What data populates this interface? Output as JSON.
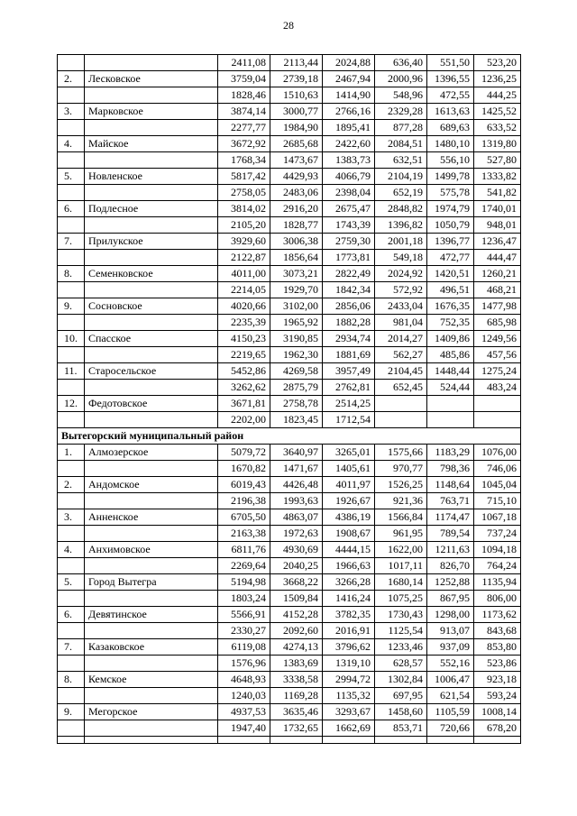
{
  "page": {
    "number": "28"
  },
  "table": {
    "section_label": "Вытегорский муниципальный район",
    "rows": [
      {
        "type": "data",
        "num": "",
        "name": "",
        "values": [
          "2411,08",
          "2113,44",
          "2024,88",
          "636,40",
          "551,50",
          "523,20"
        ]
      },
      {
        "type": "data",
        "num": "2.",
        "name": "Лесковское",
        "values": [
          "3759,04",
          "2739,18",
          "2467,94",
          "2000,96",
          "1396,55",
          "1236,25"
        ]
      },
      {
        "type": "data",
        "num": "",
        "name": "",
        "values": [
          "1828,46",
          "1510,63",
          "1414,90",
          "548,96",
          "472,55",
          "444,25"
        ]
      },
      {
        "type": "data",
        "num": "3.",
        "name": "Марковское",
        "values": [
          "3874,14",
          "3000,77",
          "2766,16",
          "2329,28",
          "1613,63",
          "1425,52"
        ]
      },
      {
        "type": "data",
        "num": "",
        "name": "",
        "values": [
          "2277,77",
          "1984,90",
          "1895,41",
          "877,28",
          "689,63",
          "633,52"
        ]
      },
      {
        "type": "data",
        "num": "4.",
        "name": "Майское",
        "values": [
          "3672,92",
          "2685,68",
          "2422,60",
          "2084,51",
          "1480,10",
          "1319,80"
        ]
      },
      {
        "type": "data",
        "num": "",
        "name": "",
        "values": [
          "1768,34",
          "1473,67",
          "1383,73",
          "632,51",
          "556,10",
          "527,80"
        ]
      },
      {
        "type": "data",
        "num": "5.",
        "name": "Новленское",
        "values": [
          "5817,42",
          "4429,93",
          "4066,79",
          "2104,19",
          "1499,78",
          "1333,82"
        ]
      },
      {
        "type": "data",
        "num": "",
        "name": "",
        "values": [
          "2758,05",
          "2483,06",
          "2398,04",
          "652,19",
          "575,78",
          "541,82"
        ]
      },
      {
        "type": "data",
        "num": "6.",
        "name": "Подлесное",
        "values": [
          "3814,02",
          "2916,20",
          "2675,47",
          "2848,82",
          "1974,79",
          "1740,01"
        ]
      },
      {
        "type": "data",
        "num": "",
        "name": "",
        "values": [
          "2105,20",
          "1828,77",
          "1743,39",
          "1396,82",
          "1050,79",
          "948,01"
        ]
      },
      {
        "type": "data",
        "num": "7.",
        "name": "Прилукское",
        "values": [
          "3929,60",
          "3006,38",
          "2759,30",
          "2001,18",
          "1396,77",
          "1236,47"
        ]
      },
      {
        "type": "data",
        "num": "",
        "name": "",
        "values": [
          "2122,87",
          "1856,64",
          "1773,81",
          "549,18",
          "472,77",
          "444,47"
        ]
      },
      {
        "type": "data",
        "num": "8.",
        "name": "Семенковское",
        "values": [
          "4011,00",
          "3073,21",
          "2822,49",
          "2024,92",
          "1420,51",
          "1260,21"
        ]
      },
      {
        "type": "data",
        "num": "",
        "name": "",
        "values": [
          "2214,05",
          "1929,70",
          "1842,34",
          "572,92",
          "496,51",
          "468,21"
        ]
      },
      {
        "type": "data",
        "num": "9.",
        "name": "Сосновское",
        "values": [
          "4020,66",
          "3102,00",
          "2856,06",
          "2433,04",
          "1676,35",
          "1477,98"
        ]
      },
      {
        "type": "data",
        "num": "",
        "name": "",
        "values": [
          "2235,39",
          "1965,92",
          "1882,28",
          "981,04",
          "752,35",
          "685,98"
        ]
      },
      {
        "type": "data",
        "num": "10.",
        "name": "Спасское",
        "values": [
          "4150,23",
          "3190,85",
          "2934,74",
          "2014,27",
          "1409,86",
          "1249,56"
        ]
      },
      {
        "type": "data",
        "num": "",
        "name": "",
        "values": [
          "2219,65",
          "1962,30",
          "1881,69",
          "562,27",
          "485,86",
          "457,56"
        ]
      },
      {
        "type": "data",
        "num": "11.",
        "name": "Старосельское",
        "values": [
          "5452,86",
          "4269,58",
          "3957,49",
          "2104,45",
          "1448,44",
          "1275,24"
        ]
      },
      {
        "type": "data",
        "num": "",
        "name": "",
        "values": [
          "3262,62",
          "2875,79",
          "2762,81",
          "652,45",
          "524,44",
          "483,24"
        ]
      },
      {
        "type": "data",
        "num": "12.",
        "name": "Федотовское",
        "values": [
          "3671,81",
          "2758,78",
          "2514,25",
          "",
          "",
          ""
        ]
      },
      {
        "type": "data",
        "num": "",
        "name": "",
        "values": [
          "2202,00",
          "1823,45",
          "1712,54",
          "",
          "",
          ""
        ]
      },
      {
        "type": "section",
        "label": "Вытегорский муниципальный район"
      },
      {
        "type": "data",
        "num": "1.",
        "name": "Алмозерское",
        "values": [
          "5079,72",
          "3640,97",
          "3265,01",
          "1575,66",
          "1183,29",
          "1076,00"
        ]
      },
      {
        "type": "data",
        "num": "",
        "name": "",
        "values": [
          "1670,82",
          "1471,67",
          "1405,61",
          "970,77",
          "798,36",
          "746,06"
        ]
      },
      {
        "type": "data",
        "num": "2.",
        "name": "Андомское",
        "values": [
          "6019,43",
          "4426,48",
          "4011,97",
          "1526,25",
          "1148,64",
          "1045,04"
        ]
      },
      {
        "type": "data",
        "num": "",
        "name": "",
        "values": [
          "2196,38",
          "1993,63",
          "1926,67",
          "921,36",
          "763,71",
          "715,10"
        ]
      },
      {
        "type": "data",
        "num": "3.",
        "name": "Анненское",
        "values": [
          "6705,50",
          "4863,07",
          "4386,19",
          "1566,84",
          "1174,47",
          "1067,18"
        ]
      },
      {
        "type": "data",
        "num": "",
        "name": "",
        "values": [
          "2163,38",
          "1972,63",
          "1908,67",
          "961,95",
          "789,54",
          "737,24"
        ]
      },
      {
        "type": "data",
        "num": "4.",
        "name": "Анхимовское",
        "values": [
          "6811,76",
          "4930,69",
          "4444,15",
          "1622,00",
          "1211,63",
          "1094,18"
        ]
      },
      {
        "type": "data",
        "num": "",
        "name": "",
        "values": [
          "2269,64",
          "2040,25",
          "1966,63",
          "1017,11",
          "826,70",
          "764,24"
        ]
      },
      {
        "type": "data",
        "num": "5.",
        "name": "Город Вытегра",
        "values": [
          "5194,98",
          "3668,22",
          "3266,28",
          "1680,14",
          "1252,88",
          "1135,94"
        ]
      },
      {
        "type": "data",
        "num": "",
        "name": "",
        "values": [
          "1803,24",
          "1509,84",
          "1416,24",
          "1075,25",
          "867,95",
          "806,00"
        ]
      },
      {
        "type": "data",
        "num": "6.",
        "name": "Девятинское",
        "values": [
          "5566,91",
          "4152,28",
          "3782,35",
          "1730,43",
          "1298,00",
          "1173,62"
        ]
      },
      {
        "type": "data",
        "num": "",
        "name": "",
        "values": [
          "2330,27",
          "2092,60",
          "2016,91",
          "1125,54",
          "913,07",
          "843,68"
        ]
      },
      {
        "type": "data",
        "num": "7.",
        "name": "Казаковское",
        "values": [
          "6119,08",
          "4274,13",
          "3796,62",
          "1233,46",
          "937,09",
          "853,80"
        ]
      },
      {
        "type": "data",
        "num": "",
        "name": "",
        "values": [
          "1576,96",
          "1383,69",
          "1319,10",
          "628,57",
          "552,16",
          "523,86"
        ]
      },
      {
        "type": "data",
        "num": "8.",
        "name": "Кемское",
        "values": [
          "4648,93",
          "3338,58",
          "2994,72",
          "1302,84",
          "1006,47",
          "923,18"
        ]
      },
      {
        "type": "data",
        "num": "",
        "name": "",
        "values": [
          "1240,03",
          "1169,28",
          "1135,32",
          "697,95",
          "621,54",
          "593,24"
        ]
      },
      {
        "type": "data",
        "num": "9.",
        "name": "Мегорское",
        "values": [
          "4937,53",
          "3635,46",
          "3293,67",
          "1458,60",
          "1105,59",
          "1008,14"
        ]
      },
      {
        "type": "data",
        "num": "",
        "name": "",
        "values": [
          "1947,40",
          "1732,65",
          "1662,69",
          "853,71",
          "720,66",
          "678,20"
        ]
      },
      {
        "type": "data",
        "num": "",
        "name": "",
        "values": [
          "",
          "",
          "",
          "",
          "",
          ""
        ],
        "short": true
      }
    ]
  }
}
